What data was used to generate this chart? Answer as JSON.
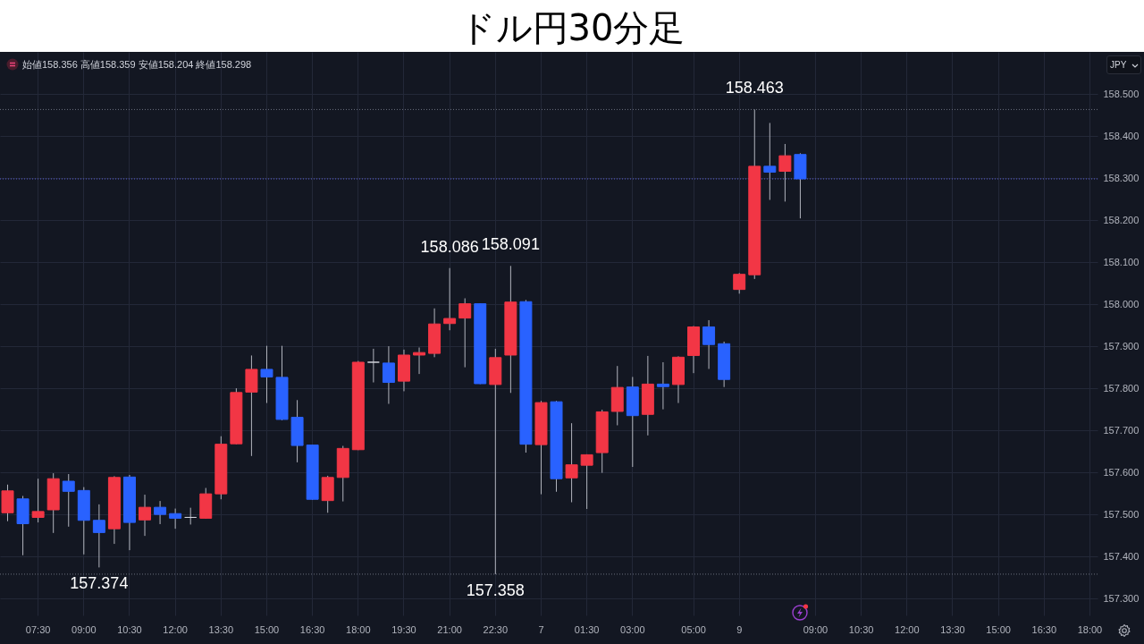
{
  "chart_data": {
    "type": "candlestick",
    "title": "ドル円30分足",
    "categories": [
      null,
      null,
      "07:30",
      null,
      null,
      "09:00",
      null,
      null,
      "10:30",
      null,
      null,
      "12:00",
      null,
      null,
      "13:30",
      null,
      null,
      "15:00",
      null,
      null,
      "16:30",
      null,
      null,
      "18:00",
      null,
      null,
      "19:30",
      null,
      null,
      "21:00",
      null,
      null,
      "22:30",
      null,
      null,
      "7",
      null,
      null,
      "01:30",
      null,
      null,
      "03:00",
      null,
      null,
      null,
      "05:00",
      null,
      null,
      "9",
      null,
      null,
      null,
      null,
      "09:00",
      null,
      null,
      "10:30",
      null,
      null,
      "12:00",
      null,
      null,
      "13:30",
      null,
      null,
      "15:00",
      null,
      null,
      "16:30",
      null,
      null,
      "18:00"
    ],
    "ohlc": [
      [
        157.504,
        157.571,
        157.484,
        157.556
      ],
      [
        157.537,
        157.544,
        157.403,
        157.478
      ],
      [
        157.493,
        157.585,
        157.481,
        157.507
      ],
      [
        157.511,
        157.598,
        157.456,
        157.585
      ],
      [
        157.579,
        157.596,
        157.471,
        157.555
      ],
      [
        157.557,
        157.565,
        157.405,
        157.486
      ],
      [
        157.486,
        157.524,
        157.374,
        157.457
      ],
      [
        157.466,
        157.591,
        157.43,
        157.588
      ],
      [
        157.589,
        157.594,
        157.415,
        157.481
      ],
      [
        157.487,
        157.547,
        157.449,
        157.517
      ],
      [
        157.517,
        157.532,
        157.477,
        157.5
      ],
      [
        157.502,
        157.514,
        157.466,
        157.491
      ],
      [
        157.493,
        157.516,
        157.476,
        157.493
      ],
      [
        157.491,
        157.563,
        157.49,
        157.549
      ],
      [
        157.549,
        157.686,
        157.536,
        157.667
      ],
      [
        157.668,
        157.8,
        157.667,
        157.79
      ],
      [
        157.791,
        157.878,
        157.639,
        157.845
      ],
      [
        157.845,
        157.901,
        157.765,
        157.827
      ],
      [
        157.826,
        157.901,
        157.724,
        157.726
      ],
      [
        157.731,
        157.772,
        157.624,
        157.664
      ],
      [
        157.665,
        157.666,
        157.535,
        157.536
      ],
      [
        157.533,
        157.592,
        157.504,
        157.588
      ],
      [
        157.588,
        157.663,
        157.531,
        157.657
      ],
      [
        157.654,
        157.865,
        157.653,
        157.862
      ],
      [
        157.862,
        157.894,
        157.814,
        157.862
      ],
      [
        157.86,
        157.9,
        157.763,
        157.814
      ],
      [
        157.817,
        157.892,
        157.793,
        157.879
      ],
      [
        157.879,
        157.897,
        157.834,
        157.885
      ],
      [
        157.883,
        157.99,
        157.874,
        157.953
      ],
      [
        157.954,
        158.086,
        157.938,
        157.966
      ],
      [
        157.967,
        158.014,
        157.85,
        158.001
      ],
      [
        158.001,
        158.002,
        157.81,
        157.811
      ],
      [
        157.809,
        157.894,
        157.358,
        157.873
      ],
      [
        157.879,
        158.091,
        157.789,
        158.005
      ],
      [
        158.006,
        158.01,
        157.647,
        157.667
      ],
      [
        157.666,
        157.77,
        157.548,
        157.766
      ],
      [
        157.768,
        157.77,
        157.554,
        157.585
      ],
      [
        157.587,
        157.717,
        157.529,
        157.618
      ],
      [
        157.617,
        157.643,
        157.513,
        157.642
      ],
      [
        157.647,
        157.749,
        157.599,
        157.744
      ],
      [
        157.745,
        157.853,
        157.712,
        157.802
      ],
      [
        157.803,
        157.827,
        157.613,
        157.735
      ],
      [
        157.738,
        157.877,
        157.688,
        157.81
      ],
      [
        157.81,
        157.862,
        157.75,
        157.804
      ],
      [
        157.809,
        157.876,
        157.765,
        157.874
      ],
      [
        157.878,
        157.948,
        157.836,
        157.946
      ],
      [
        157.946,
        157.962,
        157.846,
        157.904
      ],
      [
        157.906,
        157.911,
        157.803,
        157.821
      ],
      [
        158.035,
        158.074,
        158.025,
        158.071
      ],
      [
        158.07,
        158.463,
        158.06,
        158.328
      ],
      [
        158.328,
        158.431,
        158.248,
        158.314
      ],
      [
        158.316,
        158.381,
        158.244,
        158.353
      ],
      [
        158.356,
        158.359,
        158.204,
        158.298
      ],
      null,
      null,
      null,
      null,
      null,
      null,
      null,
      null,
      null,
      null,
      null,
      null,
      null,
      null,
      null,
      null,
      null,
      null,
      null
    ],
    "colors": [
      "#f23645",
      "#2962ff",
      "#f23645",
      "#f23645",
      "#2962ff",
      "#2962ff",
      "#2962ff",
      "#f23645",
      "#2962ff",
      "#f23645",
      "#2962ff",
      "#2962ff",
      "#d1d4dc",
      "#f23645",
      "#f23645",
      "#f23645",
      "#f23645",
      "#2962ff",
      "#2962ff",
      "#2962ff",
      "#2962ff",
      "#f23645",
      "#f23645",
      "#f23645",
      "#d1d4dc",
      "#2962ff",
      "#f23645",
      "#f23645",
      "#f23645",
      "#f23645",
      "#f23645",
      "#2962ff",
      "#f23645",
      "#f23645",
      "#2962ff",
      "#f23645",
      "#2962ff",
      "#f23645",
      "#f23645",
      "#f23645",
      "#f23645",
      "#2962ff",
      "#f23645",
      "#2962ff",
      "#f23645",
      "#f23645",
      "#2962ff",
      "#2962ff",
      "#f23645",
      "#f23645",
      "#2962ff",
      "#f23645",
      "#2962ff",
      null,
      null,
      null,
      null,
      null,
      null,
      null,
      null,
      null,
      null,
      null,
      null,
      null,
      null,
      null,
      null,
      null,
      null,
      null
    ],
    "ylim": [
      157.26,
      158.6
    ],
    "yticks": [
      {
        "value": 157.3,
        "label": "157.300"
      },
      {
        "value": 157.4,
        "label": "157.400"
      },
      {
        "value": 157.5,
        "label": "157.500"
      },
      {
        "value": 157.6,
        "label": "157.600"
      },
      {
        "value": 157.7,
        "label": "157.700"
      },
      {
        "value": 157.8,
        "label": "157.800"
      },
      {
        "value": 157.9,
        "label": "157.900"
      },
      {
        "value": 158.0,
        "label": "158.000"
      },
      {
        "value": 158.1,
        "label": "158.100"
      },
      {
        "value": 158.2,
        "label": "158.200"
      },
      {
        "value": 158.3,
        "label": "158.300"
      },
      {
        "value": 158.4,
        "label": "158.400"
      },
      {
        "value": 158.5,
        "label": "158.500"
      }
    ],
    "grid": true,
    "ref_lines": [
      {
        "axis": "y",
        "value": 158.463,
        "color": "#6b6f7e",
        "line_style": "dotted"
      },
      {
        "axis": "y",
        "value": 157.358,
        "color": "#6b6f7e",
        "line_style": "dotted"
      },
      {
        "axis": "y",
        "value": 158.298,
        "color": "#5b5fd6",
        "line_style": "dotted"
      }
    ],
    "annotations": [
      "始値158.356 高値158.359 安値158.204 終値158.298",
      "JPY",
      {
        "text": "158.463",
        "y": 158.463
      },
      {
        "text": "158.086",
        "x": "21:00",
        "y": 158.086
      },
      {
        "text": "158.091",
        "y": 158.091
      },
      {
        "text": "157.374",
        "y": 157.374
      },
      {
        "text": "157.358",
        "x": "22:30",
        "y": 157.358
      }
    ]
  }
}
